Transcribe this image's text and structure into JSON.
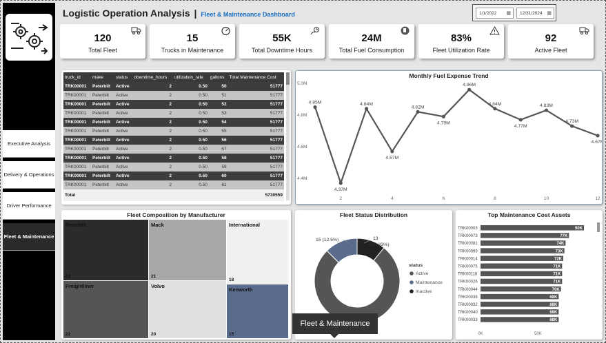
{
  "header": {
    "title": "Logistic Operation Analysis",
    "separator": "|",
    "subtitle": "Fleet & Maintenance Dashboard",
    "date_start": "1/1/2022",
    "date_end": "12/31/2024"
  },
  "sidebar": {
    "items": [
      {
        "label": "Executive Analysis"
      },
      {
        "label": "Delivery & Operations"
      },
      {
        "label": "Driver Performance"
      },
      {
        "label": "Fleet & Maintenance"
      }
    ]
  },
  "kpis": [
    {
      "value": "120",
      "label": "Total Fleet",
      "icon": "truck-icon"
    },
    {
      "value": "15",
      "label": "Trucks in Maintenance",
      "icon": "gauge-icon"
    },
    {
      "value": "55K",
      "label": "Total Downtime Hours",
      "icon": "clock-gear-icon"
    },
    {
      "value": "24M",
      "label": "Total Fuel Consumption",
      "icon": "fuel-icon"
    },
    {
      "value": "83%",
      "label": "Fleet Utilization Rate",
      "icon": "warning-icon"
    },
    {
      "value": "92",
      "label": "Active Fleet",
      "icon": "truck-icon"
    }
  ],
  "table": {
    "columns": [
      "truck_id",
      "make",
      "status",
      "downtime_hours",
      "utilization_rate",
      "gallons",
      "Total Maintenance Cost"
    ],
    "rows": [
      [
        "TRK00001",
        "Peterbilt",
        "Active",
        "2",
        "0.50",
        "50",
        "51777"
      ],
      [
        "TRK00001",
        "Peterbilt",
        "Active",
        "2",
        "0.50",
        "51",
        "51777"
      ],
      [
        "TRK00001",
        "Peterbilt",
        "Active",
        "2",
        "0.50",
        "52",
        "51777"
      ],
      [
        "TRK00001",
        "Peterbilt",
        "Active",
        "2",
        "0.50",
        "53",
        "51777"
      ],
      [
        "TRK00001",
        "Peterbilt",
        "Active",
        "2",
        "0.50",
        "54",
        "51777"
      ],
      [
        "TRK00001",
        "Peterbilt",
        "Active",
        "2",
        "0.50",
        "55",
        "51777"
      ],
      [
        "TRK00001",
        "Peterbilt",
        "Active",
        "2",
        "0.50",
        "56",
        "51777"
      ],
      [
        "TRK00001",
        "Peterbilt",
        "Active",
        "2",
        "0.50",
        "57",
        "51777"
      ],
      [
        "TRK00001",
        "Peterbilt",
        "Active",
        "2",
        "0.50",
        "58",
        "51777"
      ],
      [
        "TRK00001",
        "Peterbilt",
        "Active",
        "2",
        "0.50",
        "59",
        "51777"
      ],
      [
        "TRK00001",
        "Peterbilt",
        "Active",
        "2",
        "0.50",
        "60",
        "51777"
      ],
      [
        "TRK00001",
        "Peterbilt",
        "Active",
        "2",
        "0.50",
        "61",
        "51777"
      ]
    ],
    "total_label": "Total",
    "total_value": "5730559"
  },
  "treemap": {
    "title": "Fleet Composition by Manufacturer",
    "items": [
      {
        "name": "Peterbilt",
        "count": "24",
        "color": "#2b2b2b"
      },
      {
        "name": "Mack",
        "count": "21",
        "color": "#a8a8a8"
      },
      {
        "name": "International",
        "count": "18",
        "color": "#f0f0f0"
      },
      {
        "name": "Freightliner",
        "count": "22",
        "color": "#555555"
      },
      {
        "name": "Volvo",
        "count": "20",
        "color": "#e0e0e0"
      },
      {
        "name": "Kenworth",
        "count": "15",
        "color": "#5a6b8c"
      }
    ]
  },
  "tooltip": {
    "text": "Fleet & Maintenance"
  },
  "chart_data": [
    {
      "type": "line",
      "title": "Monthly Fuel Expense Trend",
      "x": [
        1,
        2,
        3,
        4,
        5,
        6,
        7,
        8,
        9,
        10,
        11,
        12
      ],
      "series": [
        {
          "values": [
            4.85,
            4.37,
            4.84,
            4.57,
            4.82,
            4.79,
            4.96,
            4.84,
            4.77,
            4.83,
            4.73,
            4.67
          ],
          "labels": [
            "4.85M",
            "4.37M",
            "4.84M",
            "4.57M",
            "4.82M",
            "4.79M",
            "4.96M",
            "4.84M",
            "4.77M",
            "4.83M",
            "4.73M",
            "4.67M"
          ]
        }
      ],
      "xticks": [
        "2",
        "4",
        "6",
        "8",
        "10",
        "12"
      ],
      "yticks": [
        "4.4M",
        "4.6M",
        "4.8M",
        "5.0M"
      ],
      "ylim": [
        4.33,
        5.0
      ],
      "color": "#555555"
    },
    {
      "type": "pie",
      "title": "Fleet Status Distribution",
      "legend_title": "status",
      "slices": [
        {
          "name": "Active",
          "value": 92,
          "color": "#555555",
          "label": ""
        },
        {
          "name": "Maintenance",
          "value": 15,
          "color": "#5a6b8c",
          "label": "15 (12.5%)"
        },
        {
          "name": "Inactive",
          "value": 13,
          "color": "#222222",
          "label": "13 (10.83%)"
        }
      ]
    },
    {
      "type": "bar",
      "title": "Top Maintenance Cost Assets",
      "categories": [
        "TRK00003",
        "TRK00073",
        "TRK00081",
        "TRK00099",
        "TRK00014",
        "TRK00075",
        "TRK00118",
        "TRK00026",
        "TRK00044",
        "TRK00038",
        "TRK00032",
        "TRK00040",
        "TRK00033"
      ],
      "values": [
        90,
        77,
        74,
        73,
        72,
        71,
        71,
        71,
        70,
        68,
        68,
        68,
        68
      ],
      "labels": [
        "90K",
        "77K",
        "74K",
        "73K",
        "72K",
        "71K",
        "71K",
        "71K",
        "70K",
        "68K",
        "68K",
        "68K",
        "68K"
      ],
      "xticks": [
        "0K",
        "50K"
      ],
      "xlim": [
        0,
        90
      ],
      "color": "#555555"
    }
  ]
}
